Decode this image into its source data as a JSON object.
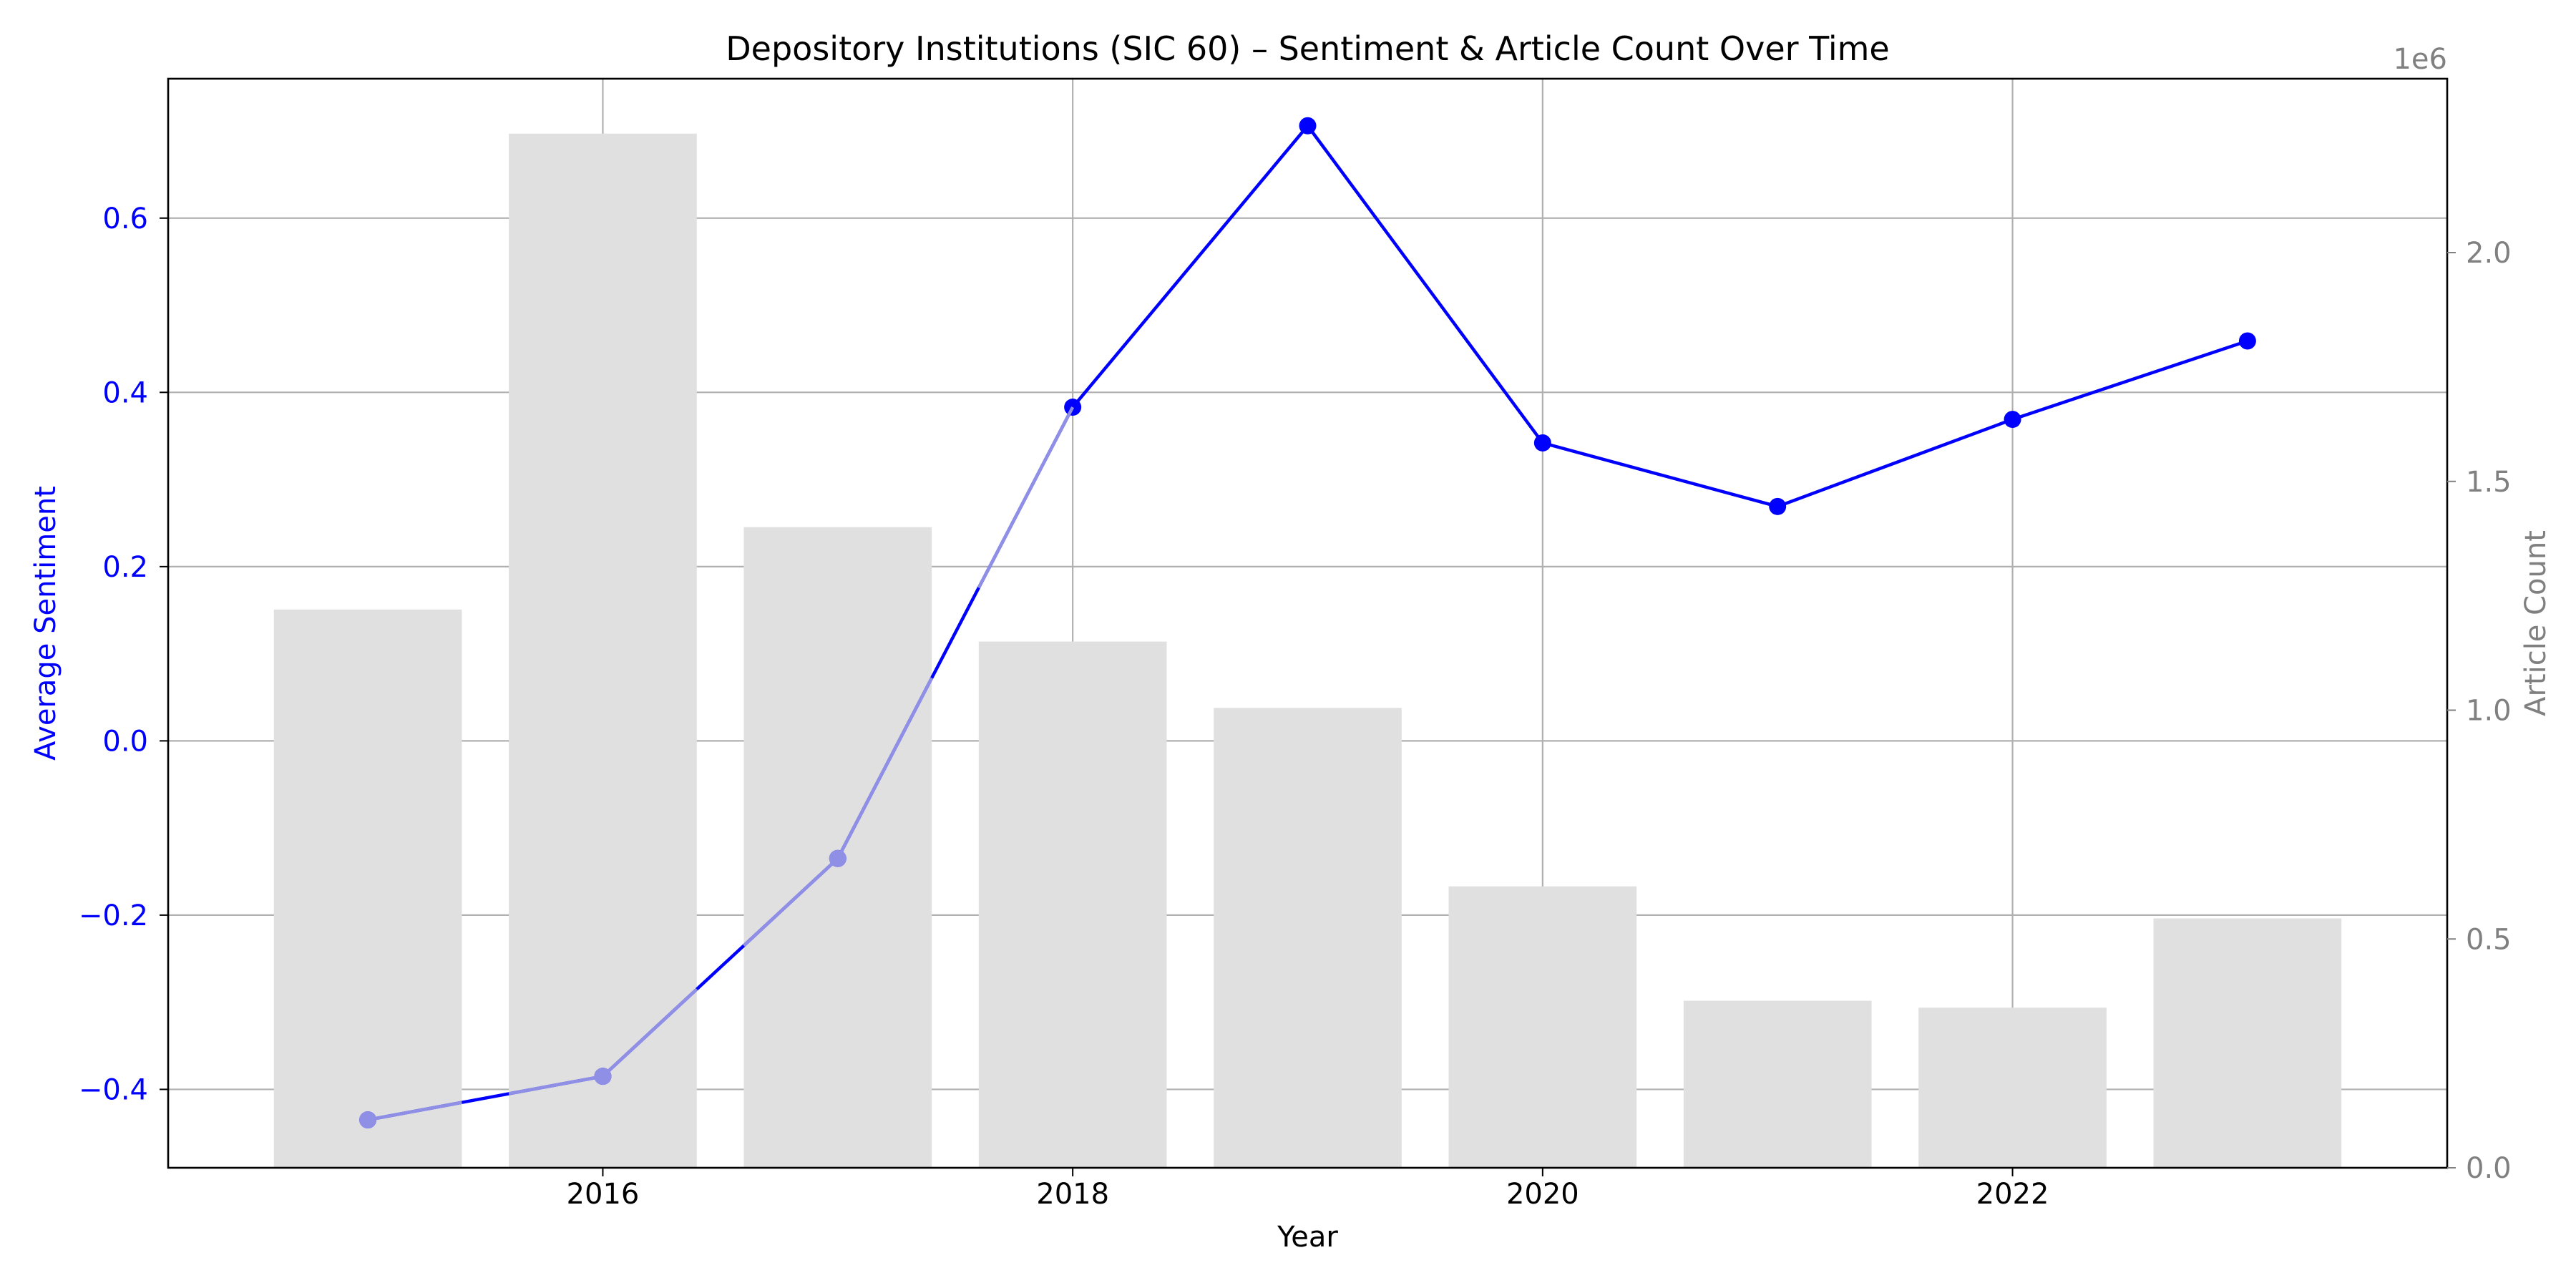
{
  "chart_data": {
    "type": "bar",
    "title": "Depository Institutions (SIC 60) – Sentiment & Article Count Over Time",
    "xlabel": "Year",
    "ylabel_left": "Average Sentiment",
    "ylabel_right": "Article Count",
    "right_axis_offset_label": "1e6",
    "x": [
      2015,
      2016,
      2017,
      2018,
      2019,
      2020,
      2021,
      2022,
      2023
    ],
    "xlim": [
      2014.15,
      2023.85
    ],
    "x_ticks": [
      2016,
      2018,
      2020,
      2022
    ],
    "x_tick_labels": [
      "2016",
      "2018",
      "2020",
      "2022"
    ],
    "ylim_left": [
      -0.49,
      0.76
    ],
    "y_ticks_left": [
      -0.4,
      -0.2,
      0.0,
      0.2,
      0.4,
      0.6
    ],
    "y_tick_labels_left": [
      "−0.4",
      "−0.2",
      "0.0",
      "0.2",
      "0.4",
      "0.6"
    ],
    "ylim_right": [
      0,
      2380000
    ],
    "y_ticks_right": [
      0,
      500000,
      1000000,
      1500000,
      2000000
    ],
    "y_tick_labels_right": [
      "0.0",
      "0.5",
      "1.0",
      "1.5",
      "2.0"
    ],
    "grid": true,
    "series": [
      {
        "name": "Article Count",
        "type": "bar",
        "axis": "right",
        "color": "#e0e0e0",
        "values": [
          1220000,
          2260000,
          1400000,
          1150000,
          1005000,
          615000,
          365000,
          350000,
          545000
        ]
      },
      {
        "name": "Average Sentiment",
        "type": "line",
        "axis": "left",
        "color": "#0000ff",
        "faded_color": "#8f8fe6",
        "values": [
          -0.435,
          -0.385,
          -0.135,
          0.383,
          0.706,
          0.342,
          0.269,
          0.369,
          0.459
        ]
      }
    ],
    "colors": {
      "left_axis": "#0000ff",
      "right_axis": "#808080",
      "grid": "#b0b0b0",
      "axes": "#000000"
    }
  }
}
